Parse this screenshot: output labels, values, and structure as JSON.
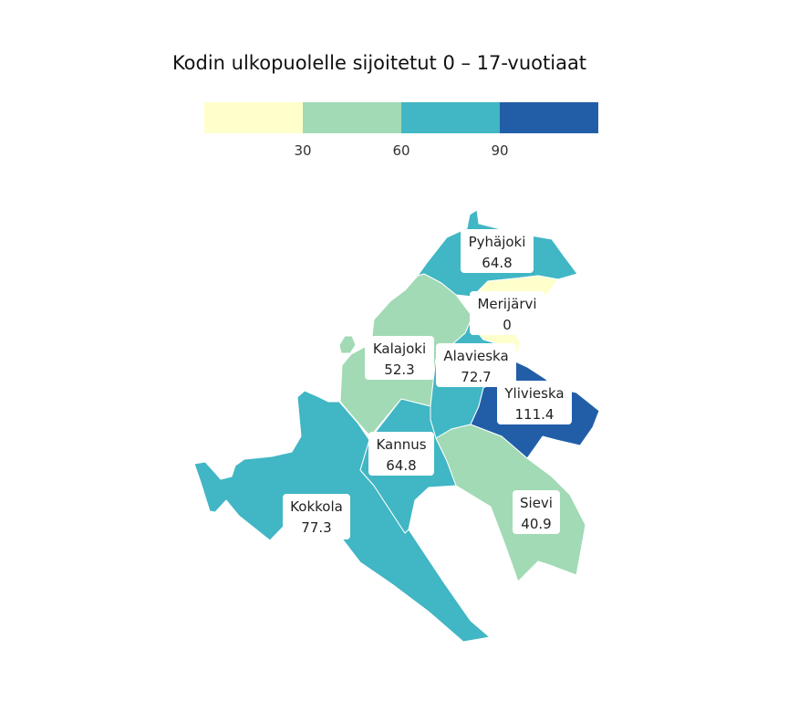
{
  "title": "Kodin ulkopuolelle sijoitetut 0 – 17-vuotiaat",
  "legend": {
    "bins": [
      {
        "min": 0,
        "max": 30,
        "color": "#ffffcc"
      },
      {
        "min": 30,
        "max": 60,
        "color": "#a1dab4"
      },
      {
        "min": 60,
        "max": 90,
        "color": "#41b6c4"
      },
      {
        "min": 90,
        "max": 120,
        "color": "#225ea8"
      }
    ],
    "ticks": [
      "30",
      "60",
      "90"
    ]
  },
  "regions": [
    {
      "id": "pyhajoki",
      "name": "Pyhäjoki",
      "value": "64.8",
      "color": "#41b6c4"
    },
    {
      "id": "merijarvi",
      "name": "Merijärvi",
      "value": "0",
      "color": "#ffffcc"
    },
    {
      "id": "kalajoki",
      "name": "Kalajoki",
      "value": "52.3",
      "color": "#a1dab4"
    },
    {
      "id": "alavieska",
      "name": "Alavieska",
      "value": "72.7",
      "color": "#41b6c4"
    },
    {
      "id": "ylivieska",
      "name": "Ylivieska",
      "value": "111.4",
      "color": "#225ea8"
    },
    {
      "id": "kannus",
      "name": "Kannus",
      "value": "64.8",
      "color": "#41b6c4"
    },
    {
      "id": "sievi",
      "name": "Sievi",
      "value": "40.9",
      "color": "#a1dab4"
    },
    {
      "id": "kokkola",
      "name": "Kokkola",
      "value": "77.3",
      "color": "#41b6c4"
    }
  ]
}
